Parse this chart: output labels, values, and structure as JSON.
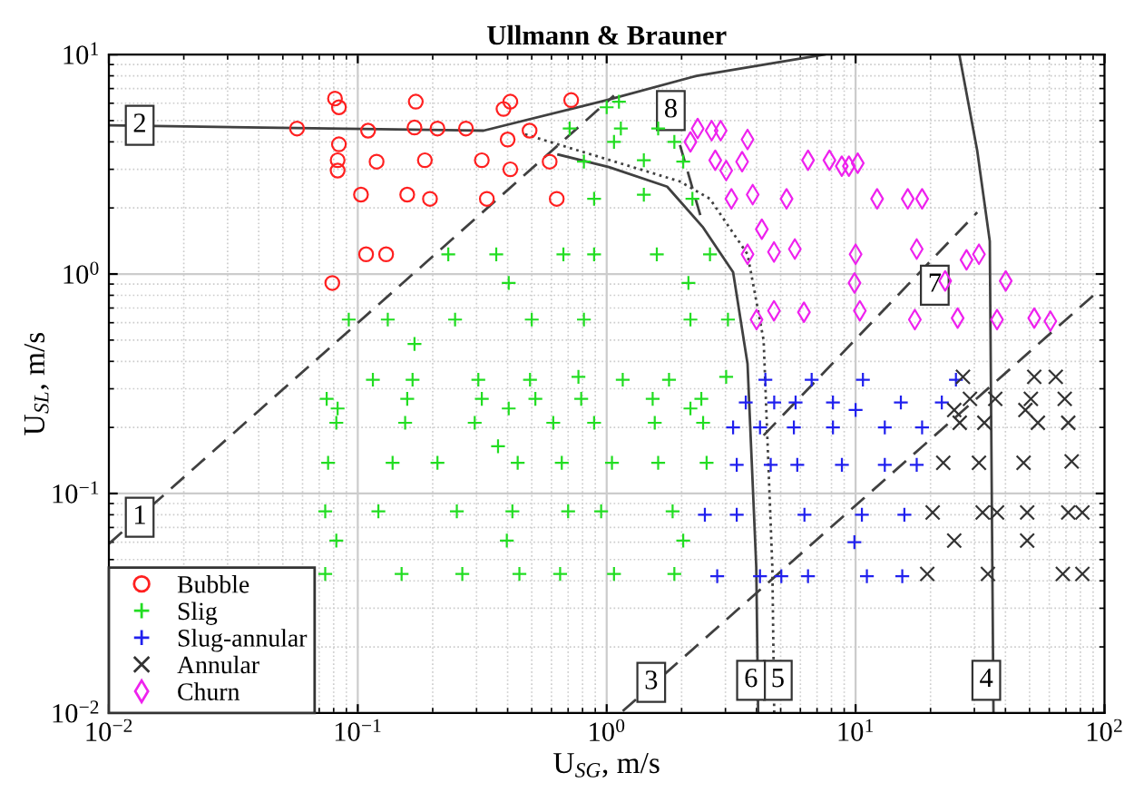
{
  "chart_data": {
    "type": "scatter",
    "title": "Ullmann & Brauner",
    "xlabel": "U$_{SG}$, m/s",
    "ylabel": "U$_{SL}$, m/s",
    "log": "xy",
    "xlim": [
      0.01,
      100
    ],
    "ylim": [
      0.01,
      10
    ],
    "xticks": [
      {
        "value": 0.01,
        "label": "10$^{−2}$"
      },
      {
        "value": 0.1,
        "label": "10$^{−1}$"
      },
      {
        "value": 1,
        "label": "10$^{0}$"
      },
      {
        "value": 10,
        "label": "10$^{1}$"
      },
      {
        "value": 100,
        "label": "10$^{2}$"
      }
    ],
    "yticks": [
      {
        "value": 0.01,
        "label": "10$^{−2}$"
      },
      {
        "value": 0.1,
        "label": "10$^{−1}$"
      },
      {
        "value": 1,
        "label": "10$^{0}$"
      },
      {
        "value": 10,
        "label": "10$^{1}$"
      }
    ],
    "grid": true,
    "legend": "bottom left",
    "series": [
      {
        "name": "Bubble",
        "marker": "circle",
        "color": "#ff2020",
        "x": [
          0.081,
          0.084,
          0.171,
          0.41,
          0.385,
          0.72,
          0.057,
          0.11,
          0.169,
          0.209,
          0.272,
          0.49,
          0.084,
          0.4,
          0.083,
          0.119,
          0.186,
          0.315,
          0.59,
          0.083,
          0.41,
          0.103,
          0.158,
          0.195,
          0.33,
          0.63,
          0.108,
          0.13,
          0.079
        ],
        "values": [
          6.3,
          5.75,
          6.1,
          6.1,
          5.65,
          6.2,
          4.6,
          4.5,
          4.65,
          4.6,
          4.6,
          4.5,
          3.9,
          4.1,
          3.3,
          3.25,
          3.3,
          3.3,
          3.25,
          2.96,
          3.0,
          2.3,
          2.3,
          2.2,
          2.2,
          2.2,
          1.23,
          1.23,
          0.91
        ]
      },
      {
        "name": "Slig",
        "marker": "plus",
        "color": "#22dd22",
        "x": [
          1.0,
          1.12,
          0.71,
          1.14,
          1.61,
          1.07,
          1.87,
          0.81,
          1.41,
          2.03,
          0.89,
          1.41,
          2.21,
          0.231,
          0.36,
          0.67,
          0.89,
          1.59,
          2.6,
          0.404,
          2.13,
          0.092,
          0.132,
          0.246,
          0.5,
          0.81,
          2.17,
          3.07,
          0.169,
          0.115,
          0.166,
          0.305,
          0.492,
          0.77,
          1.16,
          1.78,
          3.02,
          0.075,
          0.083,
          0.082,
          0.158,
          0.155,
          0.315,
          0.295,
          0.404,
          0.517,
          0.61,
          0.79,
          0.89,
          1.53,
          1.56,
          2.17,
          2.4,
          2.44,
          0.366,
          0.076,
          0.138,
          0.209,
          0.439,
          0.66,
          1.05,
          1.61,
          2.52,
          0.074,
          0.121,
          0.25,
          0.418,
          0.7,
          0.95,
          1.84,
          0.082,
          0.397,
          2.03,
          0.074,
          0.15,
          0.263,
          0.446,
          0.65,
          1.07,
          1.87
        ],
        "values": [
          5.75,
          6.1,
          4.6,
          4.6,
          4.6,
          4.0,
          4.0,
          3.25,
          3.3,
          3.25,
          2.2,
          2.3,
          2.2,
          1.23,
          1.23,
          1.23,
          1.23,
          1.23,
          1.23,
          0.91,
          0.91,
          0.62,
          0.62,
          0.62,
          0.62,
          0.62,
          0.62,
          0.62,
          0.48,
          0.33,
          0.33,
          0.33,
          0.33,
          0.34,
          0.33,
          0.33,
          0.34,
          0.27,
          0.244,
          0.21,
          0.27,
          0.21,
          0.27,
          0.21,
          0.244,
          0.27,
          0.21,
          0.27,
          0.21,
          0.27,
          0.21,
          0.244,
          0.27,
          0.21,
          0.164,
          0.138,
          0.138,
          0.138,
          0.138,
          0.138,
          0.138,
          0.138,
          0.138,
          0.083,
          0.083,
          0.083,
          0.083,
          0.083,
          0.083,
          0.083,
          0.061,
          0.061,
          0.061,
          0.043,
          0.043,
          0.043,
          0.043,
          0.043,
          0.043,
          0.043
        ]
      },
      {
        "name": "Slug-annular",
        "marker": "plus",
        "color": "#2020ee",
        "x": [
          4.34,
          6.66,
          10.7,
          25.3,
          3.62,
          4.71,
          5.74,
          8.11,
          10.0,
          15.2,
          22.2,
          3.22,
          4.13,
          5.65,
          8.11,
          13.1,
          18.5,
          3.33,
          4.56,
          5.83,
          8.81,
          13.1,
          17.6,
          2.48,
          3.33,
          6.23,
          10.6,
          15.7,
          9.89,
          2.78,
          4.13,
          5.03,
          6.44,
          11.1,
          15.4
        ],
        "values": [
          0.33,
          0.33,
          0.33,
          0.33,
          0.26,
          0.26,
          0.26,
          0.26,
          0.24,
          0.26,
          0.26,
          0.2,
          0.2,
          0.2,
          0.2,
          0.2,
          0.2,
          0.135,
          0.135,
          0.135,
          0.135,
          0.135,
          0.135,
          0.08,
          0.08,
          0.08,
          0.08,
          0.08,
          0.06,
          0.042,
          0.042,
          0.042,
          0.042,
          0.042,
          0.042
        ]
      },
      {
        "name": "Annular",
        "marker": "cross",
        "color": "#333333",
        "x": [
          27.0,
          52.2,
          63.7,
          28.8,
          36.4,
          50.6,
          69.2,
          24.9,
          48.1,
          26.2,
          32.9,
          54.0,
          71.5,
          22.5,
          31.3,
          47.3,
          73.8,
          20.4,
          32.4,
          37.0,
          48.9,
          71.5,
          81.5,
          24.9,
          48.9,
          19.4,
          34.0,
          68.0,
          81.5
        ],
        "values": [
          0.34,
          0.34,
          0.34,
          0.27,
          0.27,
          0.27,
          0.27,
          0.24,
          0.24,
          0.21,
          0.21,
          0.21,
          0.21,
          0.138,
          0.138,
          0.138,
          0.14,
          0.082,
          0.082,
          0.082,
          0.082,
          0.082,
          0.082,
          0.061,
          0.061,
          0.043,
          0.043,
          0.043,
          0.043
        ]
      },
      {
        "name": "Churn",
        "marker": "diamond",
        "color": "#ee22ee",
        "x": [
          2.32,
          2.64,
          2.87,
          2.17,
          3.68,
          2.73,
          3.02,
          3.5,
          6.44,
          7.85,
          8.8,
          9.4,
          10.2,
          3.17,
          3.86,
          5.28,
          12.2,
          16.2,
          18.5,
          4.2,
          3.68,
          4.7,
          5.7,
          10.0,
          17.6,
          27.9,
          31.3,
          9.9,
          22.9,
          40.1,
          4.0,
          4.7,
          6.2,
          10.4,
          17.3,
          25.7,
          37.0,
          52.2,
          60.6
        ],
        "values": [
          4.6,
          4.5,
          4.5,
          4.0,
          4.1,
          3.3,
          2.96,
          3.25,
          3.3,
          3.3,
          3.1,
          3.1,
          3.2,
          2.2,
          2.3,
          2.2,
          2.2,
          2.2,
          2.2,
          1.6,
          1.23,
          1.26,
          1.3,
          1.23,
          1.3,
          1.16,
          1.23,
          0.91,
          0.93,
          0.93,
          0.62,
          0.68,
          0.67,
          0.68,
          0.62,
          0.63,
          0.62,
          0.63,
          0.61
        ]
      },
      {
        "type": "line",
        "line_style": "dashed",
        "color": "#404040",
        "x": [
          0.01,
          1.07
        ],
        "values": [
          0.059,
          6.5
        ]
      },
      {
        "type": "line",
        "line_style": "solid",
        "color": "#404040",
        "x": [
          0.01,
          0.32,
          1.0,
          2.3,
          7.5
        ],
        "values": [
          4.76,
          4.5,
          6.2,
          8.0,
          10
        ]
      },
      {
        "type": "line",
        "line_style": "dashed",
        "color": "#404040",
        "x": [
          1.16,
          91.5
        ],
        "values": [
          0.0102,
          0.81
        ]
      },
      {
        "type": "line",
        "line_style": "solid",
        "color": "#404040",
        "x": [
          26.1,
          30.8,
          34.6,
          35.8
        ],
        "values": [
          10,
          3.65,
          1.41,
          0.01
        ]
      },
      {
        "type": "line",
        "line_style": "dotted",
        "color": "#404040",
        "x": [
          0.47,
          1.97,
          2.6,
          3.68,
          4.27,
          4.63,
          4.71
        ],
        "values": [
          4.33,
          2.64,
          2.2,
          1.23,
          0.5,
          0.046,
          0.01
        ]
      },
      {
        "type": "line",
        "line_style": "solid",
        "color": "#404040",
        "x": [
          0.64,
          1.02,
          1.75,
          2.43,
          3.22,
          3.68,
          3.99,
          4.06
        ],
        "values": [
          3.5,
          3.07,
          2.5,
          1.64,
          1.02,
          0.39,
          0.046,
          0.01
        ]
      },
      {
        "type": "line",
        "line_style": "dashed",
        "color": "#404040",
        "x": [
          4.27,
          30.8
        ],
        "values": [
          0.184,
          1.91
        ]
      },
      {
        "type": "line",
        "line_style": "dashed",
        "color": "#404040",
        "x": [
          1.97,
          2.43
        ],
        "values": [
          3.87,
          1.7
        ]
      }
    ],
    "annotations": [
      {
        "text": "1",
        "x": 0.0133,
        "y": 0.078
      },
      {
        "text": "2",
        "x": 0.0133,
        "y": 4.76
      },
      {
        "text": "3",
        "x": 1.51,
        "y": 0.0138
      },
      {
        "text": "4",
        "x": 33.5,
        "y": 0.0141
      },
      {
        "text": "5",
        "x": 4.87,
        "y": 0.0141
      },
      {
        "text": "6",
        "x": 3.8,
        "y": 0.0141
      },
      {
        "text": "7",
        "x": 20.8,
        "y": 0.89
      },
      {
        "text": "8",
        "x": 1.81,
        "y": 5.55
      }
    ]
  }
}
